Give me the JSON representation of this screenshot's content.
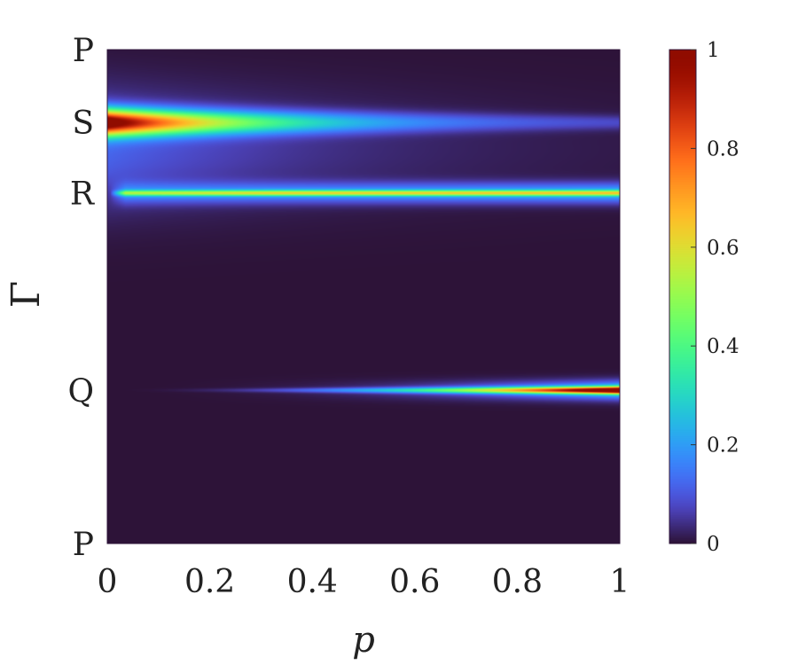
{
  "chart_data": {
    "type": "heatmap",
    "xlabel": "p",
    "ylabel": "Γ",
    "xlim": [
      0,
      1
    ],
    "x_ticks": [
      "0",
      "0.2",
      "0.4",
      "0.6",
      "0.8",
      "1"
    ],
    "y_ticks": [
      "P",
      "S",
      "R",
      "Q",
      "P"
    ],
    "y_tick_positions": [
      0,
      0.147,
      0.29,
      0.69,
      1
    ],
    "colorbar": {
      "range": [
        0,
        1
      ],
      "ticks": [
        "0",
        "0.2",
        "0.4",
        "0.6",
        "0.8",
        "1"
      ],
      "colormap": "turbo"
    },
    "bands": [
      {
        "label": "S",
        "center": 0.147,
        "peak_at_p0": 1.0,
        "peak_at_p1": 0.04
      },
      {
        "label": "R",
        "center": 0.29,
        "peak_at_p0": 0.45,
        "peak_at_p1": 0.38
      },
      {
        "label": "Q",
        "center": 0.69,
        "peak_at_p0": 0.0,
        "peak_at_p1": 0.95
      }
    ]
  }
}
